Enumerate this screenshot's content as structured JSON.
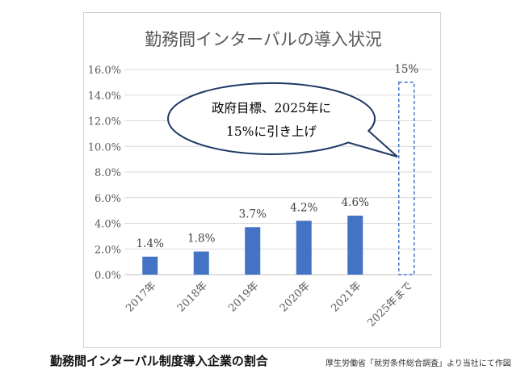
{
  "caption": "勤務間インターバル制度導入企業の割合",
  "source": "厚生労働省「就労条件総合調査」より当社にて作図",
  "chart_data": {
    "type": "bar",
    "title": "勤務間インターバルの導入状況",
    "categories": [
      "2017年",
      "2018年",
      "2019年",
      "2020年",
      "2021年",
      "2025年まで"
    ],
    "values": [
      1.4,
      1.8,
      3.7,
      4.2,
      4.6,
      15
    ],
    "data_labels": [
      "1.4%",
      "1.8%",
      "3.7%",
      "4.2%",
      "4.6%",
      "15%"
    ],
    "target_index": 5,
    "ylim": [
      0,
      16
    ],
    "y_ticks": [
      "0.0%",
      "2.0%",
      "4.0%",
      "6.0%",
      "8.0%",
      "10.0%",
      "12.0%",
      "14.0%",
      "16.0%"
    ],
    "grid": true,
    "bar_color": "#4472c4",
    "target_style": "dashed outline",
    "annotation": {
      "lines": [
        "政府目標、2025年に",
        "15%に引き上げ"
      ]
    }
  }
}
